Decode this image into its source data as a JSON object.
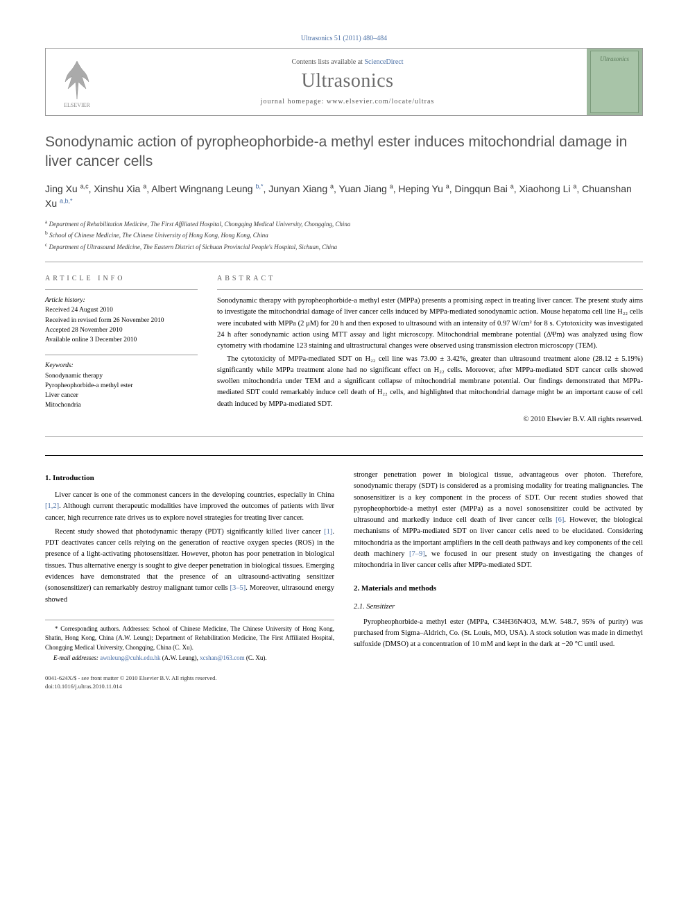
{
  "journal_citation": "Ultrasonics 51 (2011) 480–484",
  "header": {
    "contents_prefix": "Contents lists available at ",
    "contents_link": "ScienceDirect",
    "journal_name": "Ultrasonics",
    "homepage_prefix": "journal homepage: ",
    "homepage_url": "www.elsevier.com/locate/ultras",
    "cover_label": "Ultrasonics"
  },
  "title": "Sonodynamic action of pyropheophorbide-a methyl ester induces mitochondrial damage in liver cancer cells",
  "authors_html": "Jing Xu <sup>a,c</sup>, Xinshu Xia <sup>a</sup>, Albert Wingnang Leung <sup class='corr'>b,*</sup>, Junyan Xiang <sup>a</sup>, Yuan Jiang <sup>a</sup>, Heping Yu <sup>a</sup>, Dingqun Bai <sup>a</sup>, Xiaohong Li <sup>a</sup>, Chuanshan Xu <sup class='corr'>a,b,*</sup>",
  "affiliations": {
    "a": "Department of Rehabilitation Medicine, The First Affiliated Hospital, Chongqing Medical University, Chongqing, China",
    "b": "School of Chinese Medicine, The Chinese University of Hong Kong, Hong Kong, China",
    "c": "Department of Ultrasound Medicine, The Eastern District of Sichuan Provincial People's Hospital, Sichuan, China"
  },
  "info_label": "ARTICLE INFO",
  "abstract_label": "ABSTRACT",
  "history": {
    "label": "Article history:",
    "received": "Received 24 August 2010",
    "revised": "Received in revised form 26 November 2010",
    "accepted": "Accepted 28 November 2010",
    "online": "Available online 3 December 2010"
  },
  "keywords": {
    "label": "Keywords:",
    "items": [
      "Sonodynamic therapy",
      "Pyropheophorbide-a methyl ester",
      "Liver cancer",
      "Mitochondria"
    ]
  },
  "abstract": {
    "p1": "Sonodynamic therapy with pyropheophorbide-a methyl ester (MPPa) presents a promising aspect in treating liver cancer. The present study aims to investigate the mitochondrial damage of liver cancer cells induced by MPPa-mediated sonodynamic action. Mouse hepatoma cell line H₂₂ cells were incubated with MPPa (2 μM) for 20 h and then exposed to ultrasound with an intensity of 0.97 W/cm² for 8 s. Cytotoxicity was investigated 24 h after sonodynamic action using MTT assay and light microscopy. Mitochondrial membrane potential (ΔΨm) was analyzed using flow cytometry with rhodamine 123 staining and ultrastructural changes were observed using transmission electron microscopy (TEM).",
    "p2": "The cytotoxicity of MPPa-mediated SDT on H₂₂ cell line was 73.00 ± 3.42%, greater than ultrasound treatment alone (28.12 ± 5.19%) significantly while MPPa treatment alone had no significant effect on H₂₂ cells. Moreover, after MPPa-mediated SDT cancer cells showed swollen mitochondria under TEM and a significant collapse of mitochondrial membrane potential. Our findings demonstrated that MPPa-mediated SDT could remarkably induce cell death of H₂₂ cells, and highlighted that mitochondrial damage might be an important cause of cell death induced by MPPa-mediated SDT.",
    "copyright": "© 2010 Elsevier B.V. All rights reserved."
  },
  "body": {
    "intro_heading": "1. Introduction",
    "intro_p1": "Liver cancer is one of the commonest cancers in the developing countries, especially in China ",
    "intro_ref1": "[1,2]",
    "intro_p1b": ". Although current therapeutic modalities have improved the outcomes of patients with liver cancer, high recurrence rate drives us to explore novel strategies for treating liver cancer.",
    "intro_p2a": "Recent study showed that photodynamic therapy (PDT) significantly killed liver cancer ",
    "intro_ref2": "[1]",
    "intro_p2b": ". PDT deactivates cancer cells relying on the generation of reactive oxygen species (ROS) in the presence of a light-activating photosensitizer. However, photon has poor penetration in biological tissues. Thus alternative energy is sought to give deeper penetration in biological tissues. Emerging evidences have demonstrated that the presence of an ultrasound-activating sensitizer (sonosensitizer) can remarkably destroy malignant tumor cells ",
    "intro_ref3": "[3–5]",
    "intro_p2c": ". Moreover, ultrasound energy showed",
    "col2_p1a": "stronger penetration power in biological tissue, advantageous over photon. Therefore, sonodynamic therapy (SDT) is considered as a promising modality for treating malignancies. The sonosensitizer is a key component in the process of SDT. Our recent studies showed that pyropheophorbide-a methyl ester (MPPa) as a novel sonosensitizer could be activated by ultrasound and markedly induce cell death of liver cancer cells ",
    "col2_ref1": "[6]",
    "col2_p1b": ". However, the biological mechanisms of MPPa-mediated SDT on liver cancer cells need to be elucidated. Considering mitochondria as the important amplifiers in the cell death pathways and key components of the cell death machinery ",
    "col2_ref2": "[7–9]",
    "col2_p1c": ", we focused in our present study on investigating the changes of mitochondria in liver cancer cells after MPPa-mediated SDT.",
    "materials_heading": "2. Materials and methods",
    "sensitizer_heading": "2.1. Sensitizer",
    "sensitizer_p": "Pyropheophorbide-a methyl ester (MPPa, C34H36N4O3, M.W. 548.7, 95% of purity) was purchased from Sigma–Aldrich, Co. (St. Louis, MO, USA). A stock solution was made in dimethyl sulfoxide (DMSO) at a concentration of 10 mM and kept in the dark at −20 °C until used."
  },
  "footnotes": {
    "corr": "* Corresponding authors. Addresses: School of Chinese Medicine, The Chinese University of Hong Kong, Shatin, Hong Kong, China (A.W. Leung); Department of Rehabilitation Medicine, The First Affiliated Hospital, Chongqing Medical University, Chongqing, China (C. Xu).",
    "email_label": "E-mail addresses: ",
    "email1": "awnleung@cuhk.edu.hk",
    "email1_who": " (A.W. Leung), ",
    "email2": "xcshan@163.com",
    "email2_who": " (C. Xu)."
  },
  "bottom": {
    "issn": "0041-624X/$ - see front matter © 2010 Elsevier B.V. All rights reserved.",
    "doi": "doi:10.1016/j.ultras.2010.11.014"
  }
}
